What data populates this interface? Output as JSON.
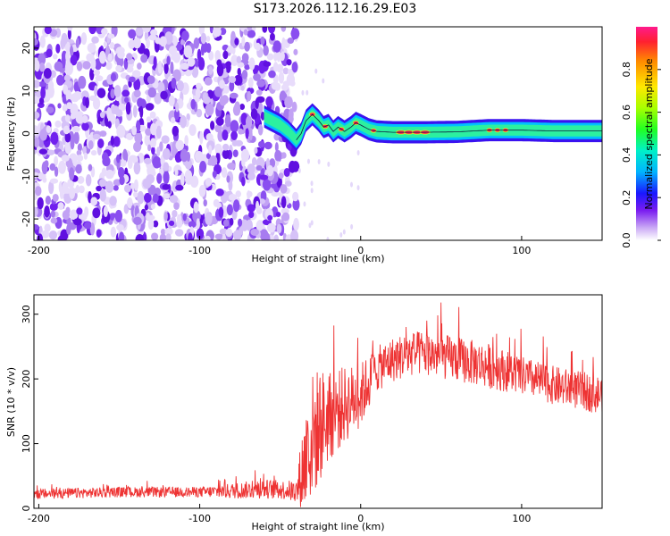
{
  "title": "S173.2026.112.16.29.E03",
  "chart_data": [
    {
      "type": "heatmap",
      "xlabel": "Height of straight line (km)",
      "ylabel": "Frequency (Hz)",
      "xlim": [
        -203,
        150
      ],
      "ylim": [
        -25,
        25
      ],
      "xticks": [
        -200,
        -100,
        0,
        100
      ],
      "yticks": [
        -20,
        -10,
        0,
        10,
        20
      ],
      "grid": false,
      "noise_region_x": [
        -203,
        -40
      ],
      "signal_onset_x": -40,
      "ridge": {
        "x": [
          -60,
          -50,
          -45,
          -40,
          -37,
          -34,
          -30,
          -26,
          -23,
          -20,
          -17,
          -14,
          -10,
          -6,
          -3,
          0,
          5,
          10,
          20,
          40,
          60,
          80,
          100,
          120,
          150
        ],
        "freq": [
          4,
          2,
          0.5,
          -1.5,
          0,
          3,
          4.5,
          3,
          1.5,
          2,
          0.5,
          1.5,
          0.5,
          1.5,
          2.5,
          2,
          1,
          0.5,
          0.3,
          0.3,
          0.4,
          0.8,
          0.8,
          0.6,
          0.6
        ]
      },
      "colorbar": {
        "label": "Normalized spectral amplitude",
        "ticks": [
          "0.0",
          "0.2",
          "0.4",
          "0.6",
          "0.8"
        ],
        "range": [
          0,
          1
        ],
        "colormap": "rainbow"
      }
    },
    {
      "type": "line",
      "xlabel": "Height of straight line (km)",
      "ylabel": "SNR (10 * v/v)",
      "xlim": [
        -203,
        150
      ],
      "ylim": [
        0,
        330
      ],
      "xticks": [
        -200,
        -100,
        0,
        100
      ],
      "yticks": [
        0,
        100,
        200,
        300
      ],
      "grid": false,
      "series": [
        {
          "color": "#ee3333",
          "envelope_x": [
            -203,
            -150,
            -100,
            -80,
            -60,
            -45,
            -40,
            -35,
            -30,
            -25,
            -20,
            -10,
            0,
            10,
            20,
            30,
            40,
            60,
            80,
            100,
            120,
            140,
            150
          ],
          "envelope_mean": [
            22,
            25,
            25,
            27,
            30,
            28,
            25,
            70,
            110,
            130,
            140,
            160,
            175,
            215,
            230,
            238,
            240,
            230,
            220,
            205,
            190,
            180,
            175
          ],
          "envelope_amp": [
            8,
            8,
            8,
            12,
            15,
            15,
            20,
            80,
            100,
            90,
            70,
            60,
            50,
            35,
            35,
            35,
            35,
            35,
            35,
            30,
            30,
            30,
            30
          ]
        }
      ]
    }
  ]
}
